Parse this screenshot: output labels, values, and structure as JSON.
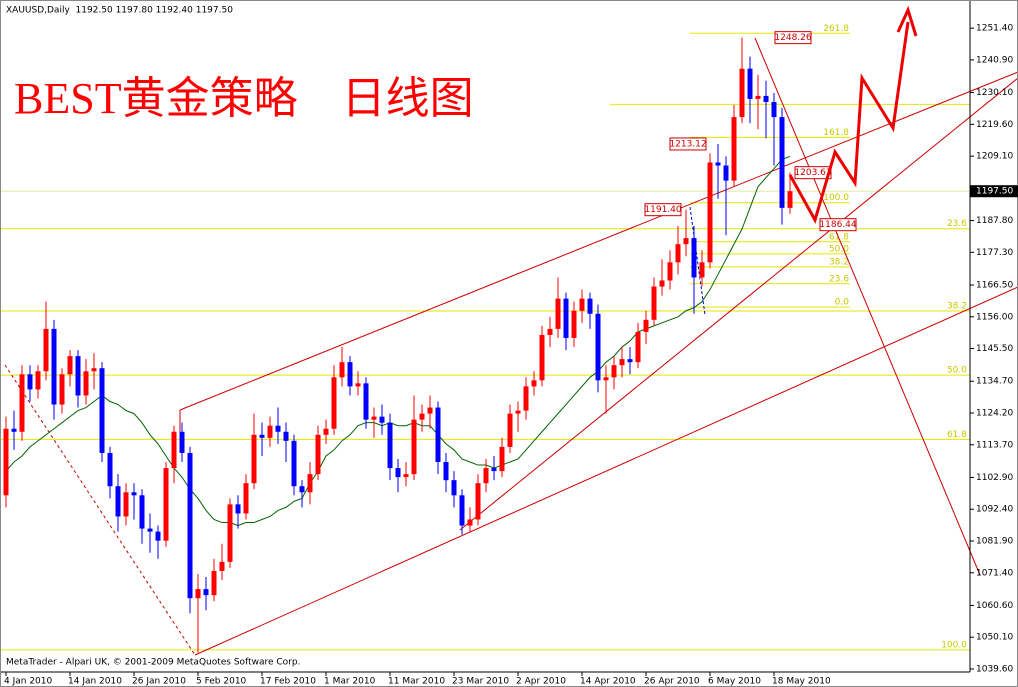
{
  "chart_data": {
    "type": "candlestick",
    "header": "XAUUSD,Daily  1192.50 1197.80 1192.40 1197.50",
    "title": "BEST黄金策略    日线图",
    "footer": "MetaTrader - Alpari UK, © 2001-2009 MetaQuotes Software Corp.",
    "up_color": "#ff0000",
    "down_color": "#0000ff",
    "ma_color": "#006400",
    "level_color": "#e6e600",
    "categories": [
      "4 Jan 2010",
      null,
      null,
      null,
      null,
      null,
      null,
      null,
      "14 Jan 2010",
      null,
      null,
      null,
      null,
      null,
      null,
      null,
      "26 Jan 2010",
      null,
      null,
      null,
      null,
      null,
      null,
      null,
      "5 Feb 2010",
      null,
      null,
      null,
      null,
      null,
      null,
      null,
      "17 Feb 2010",
      null,
      null,
      null,
      null,
      null,
      null,
      null,
      "1 Mar 2010",
      null,
      null,
      null,
      null,
      null,
      null,
      null,
      "11 Mar 2010",
      null,
      null,
      null,
      null,
      null,
      null,
      null,
      "23 Mar 2010",
      null,
      null,
      null,
      null,
      null,
      null,
      null,
      "2 Apr 2010",
      null,
      null,
      null,
      null,
      null,
      null,
      null,
      "14 Apr 2010",
      null,
      null,
      null,
      null,
      null,
      null,
      null,
      "26 Apr 2010",
      null,
      null,
      null,
      null,
      null,
      null,
      null,
      "6 May 2010",
      null,
      null,
      null,
      null,
      null,
      null,
      null,
      "18 May 2010",
      null,
      null
    ],
    "open": [
      1097,
      1119,
      1118,
      1137,
      1132,
      1138,
      1152,
      1127,
      1137,
      1143,
      1130,
      1138,
      1139,
      1111,
      1100,
      1090,
      1098,
      1097,
      1086,
      1085,
      1082,
      1106,
      1118,
      1111,
      1063,
      1066,
      1064,
      1072,
      1075,
      1094,
      1091,
      1101,
      1117,
      1116,
      1120,
      1118,
      1115,
      1100,
      1098,
      1104,
      1117,
      1119,
      1136,
      1141,
      1133,
      1134,
      1122,
      1123,
      1121,
      1106,
      1103,
      1104,
      1122,
      1124,
      1126,
      1108,
      1102,
      1097,
      1087,
      1089,
      1101,
      1106,
      1105,
      1113,
      1124,
      1125,
      1133,
      1135,
      1150,
      1152,
      1162,
      1149,
      1158,
      1162,
      1157,
      1135,
      1136,
      1140,
      1142,
      1141,
      1151,
      1155,
      1166,
      1168,
      1174,
      1180,
      1182,
      1169,
      1174,
      1207,
      1206,
      1201,
      1222,
      1238,
      1228,
      1229,
      1227,
      1222,
      1192
    ],
    "high": [
      1123,
      1125,
      1140,
      1140,
      1140,
      1161,
      1155,
      1139,
      1145,
      1145,
      1142,
      1144,
      1141,
      1113,
      1104,
      1101,
      1101,
      1099,
      1091,
      1087,
      1108,
      1120,
      1121,
      1113,
      1071,
      1070,
      1076,
      1081,
      1096,
      1097,
      1104,
      1124,
      1121,
      1123,
      1126,
      1121,
      1117,
      1102,
      1108,
      1120,
      1122,
      1140,
      1146,
      1143,
      1138,
      1136,
      1126,
      1127,
      1124,
      1109,
      1108,
      1130,
      1127,
      1130,
      1128,
      1111,
      1105,
      1099,
      1093,
      1104,
      1109,
      1110,
      1116,
      1127,
      1128,
      1136,
      1138,
      1153,
      1156,
      1169,
      1164,
      1161,
      1165,
      1164,
      1160,
      1140,
      1143,
      1146,
      1146,
      1154,
      1158,
      1169,
      1175,
      1178,
      1186,
      1191.4,
      1186,
      1178,
      1210,
      1213.12,
      1209,
      1226,
      1248.26,
      1242,
      1236,
      1234,
      1230,
      1225,
      1203.63
    ],
    "low": [
      1093,
      1112,
      1115,
      1128,
      1129,
      1135,
      1122,
      1124,
      1133,
      1126,
      1127,
      1132,
      1108,
      1096,
      1085,
      1087,
      1089,
      1081,
      1078,
      1076,
      1080,
      1101,
      1108,
      1058,
      1045,
      1059,
      1062,
      1069,
      1073,
      1086,
      1089,
      1099,
      1110,
      1113,
      1114,
      1108,
      1097,
      1093,
      1094,
      1102,
      1114,
      1117,
      1133,
      1130,
      1130,
      1119,
      1116,
      1117,
      1102,
      1098,
      1100,
      1102,
      1118,
      1119,
      1104,
      1098,
      1093,
      1084,
      1085,
      1087,
      1098,
      1102,
      1103,
      1111,
      1118,
      1122,
      1130,
      1133,
      1146,
      1149,
      1145,
      1146,
      1154,
      1152,
      1131,
      1124,
      1132,
      1136,
      1137,
      1139,
      1147,
      1153,
      1163,
      1165,
      1170,
      1176,
      1157,
      1166,
      1172,
      1195,
      1183,
      1199,
      1220,
      1220,
      1218,
      1215,
      1206,
      1186.44,
      1190
    ],
    "close": [
      1119,
      1118,
      1137,
      1132,
      1138,
      1152,
      1127,
      1137,
      1143,
      1130,
      1138,
      1139,
      1111,
      1100,
      1090,
      1098,
      1097,
      1086,
      1085,
      1082,
      1106,
      1118,
      1111,
      1063,
      1066,
      1064,
      1072,
      1075,
      1094,
      1091,
      1101,
      1117,
      1116,
      1120,
      1118,
      1115,
      1100,
      1098,
      1104,
      1117,
      1119,
      1136,
      1141,
      1133,
      1134,
      1122,
      1123,
      1121,
      1106,
      1103,
      1104,
      1122,
      1124,
      1126,
      1108,
      1102,
      1097,
      1087,
      1089,
      1101,
      1106,
      1105,
      1113,
      1124,
      1125,
      1133,
      1135,
      1150,
      1152,
      1162,
      1149,
      1158,
      1162,
      1157,
      1135,
      1136,
      1140,
      1142,
      1141,
      1151,
      1155,
      1166,
      1168,
      1174,
      1180,
      1182,
      1169,
      1174,
      1207,
      1206,
      1201,
      1222,
      1238,
      1228,
      1229,
      1227,
      1222,
      1192,
      1197.5
    ],
    "ma": [
      1105,
      1108,
      1110,
      1113,
      1115,
      1117,
      1119,
      1121,
      1123,
      1125,
      1126,
      1128,
      1130,
      1128,
      1127,
      1125,
      1124,
      1121,
      1117,
      1114,
      1110,
      1106,
      1103,
      1099,
      1096,
      1092,
      1089,
      1088,
      1088,
      1087,
      1088,
      1088,
      1089,
      1090,
      1092,
      1093,
      1095,
      1096,
      1101,
      1105,
      1110,
      1112,
      1115,
      1117,
      1120,
      1121,
      1121,
      1120,
      1121,
      1120,
      1120,
      1121,
      1120,
      1120,
      1117,
      1114,
      1112,
      1109,
      1108,
      1107,
      1107,
      1106,
      1107,
      1108,
      1109,
      1112,
      1115,
      1118,
      1121,
      1124,
      1127,
      1130,
      1133,
      1136,
      1138,
      1141,
      1143,
      1146,
      1148,
      1151,
      1152,
      1153,
      1154,
      1155,
      1156,
      1158,
      1159,
      1161,
      1165,
      1170,
      1175,
      1180,
      1185,
      1192,
      1199,
      1202,
      1205,
      1208,
      1209
    ],
    "ylim": [
      1038.6,
      1260.7
    ],
    "yticks": [
      {
        "value": 1251.4,
        "label": "1251.40"
      },
      {
        "value": 1240.9,
        "label": "1240.90"
      },
      {
        "value": 1230.1,
        "label": "1230.10"
      },
      {
        "value": 1219.6,
        "label": "1219.60"
      },
      {
        "value": 1209.1,
        "label": "1209.10"
      },
      {
        "value": 1187.8,
        "label": "1187.80"
      },
      {
        "value": 1177.3,
        "label": "1177.30"
      },
      {
        "value": 1166.5,
        "label": "1166.50"
      },
      {
        "value": 1156,
        "label": "1156.00"
      },
      {
        "value": 1145.5,
        "label": "1145.50"
      },
      {
        "value": 1134.7,
        "label": "1134.70"
      },
      {
        "value": 1124.2,
        "label": "1124.20"
      },
      {
        "value": 1113.7,
        "label": "1113.70"
      },
      {
        "value": 1102.9,
        "label": "1102.90"
      },
      {
        "value": 1092.4,
        "label": "1092.40"
      },
      {
        "value": 1081.9,
        "label": "1081.90"
      },
      {
        "value": 1071.4,
        "label": "1071.40"
      },
      {
        "value": 1060.6,
        "label": "1060.60"
      },
      {
        "value": 1050.1,
        "label": "1050.10"
      },
      {
        "value": 1039.6,
        "label": "1039.60"
      }
    ],
    "last_price": {
      "value": 1197.5,
      "label": "1197.50"
    },
    "fibo_right": [
      {
        "value": 1185.1,
        "label": "23.6"
      },
      {
        "value": 1157.9,
        "label": "38.2"
      },
      {
        "value": 1136.7,
        "label": "50.0"
      },
      {
        "value": 1115.5,
        "label": "61.8"
      },
      {
        "value": 1045.9,
        "label": "100.0"
      }
    ],
    "fibo_center": [
      {
        "value": 1249.7,
        "label": "261.8"
      },
      {
        "value": 1215.3,
        "label": "161.8"
      },
      {
        "value": 1193.7,
        "label": "100.0"
      },
      {
        "value": 1180.8,
        "label": "61.8"
      },
      {
        "value": 1176.8,
        "label": "50.0"
      },
      {
        "value": 1172.5,
        "label": "38.2"
      },
      {
        "value": 1166.9,
        "label": "23.6"
      },
      {
        "value": 1159.2,
        "label": "0.0"
      }
    ],
    "hlines": [
      1226.2
    ],
    "annotations": [
      {
        "value": 1248.26,
        "label": "1248.26"
      },
      {
        "value": 1213.12,
        "label": "1213.12"
      },
      {
        "value": 1191.4,
        "label": "1191.40"
      },
      {
        "value": 1203.63,
        "label": "1203.63"
      },
      {
        "value": 1186.44,
        "label": "1186.44"
      }
    ]
  }
}
